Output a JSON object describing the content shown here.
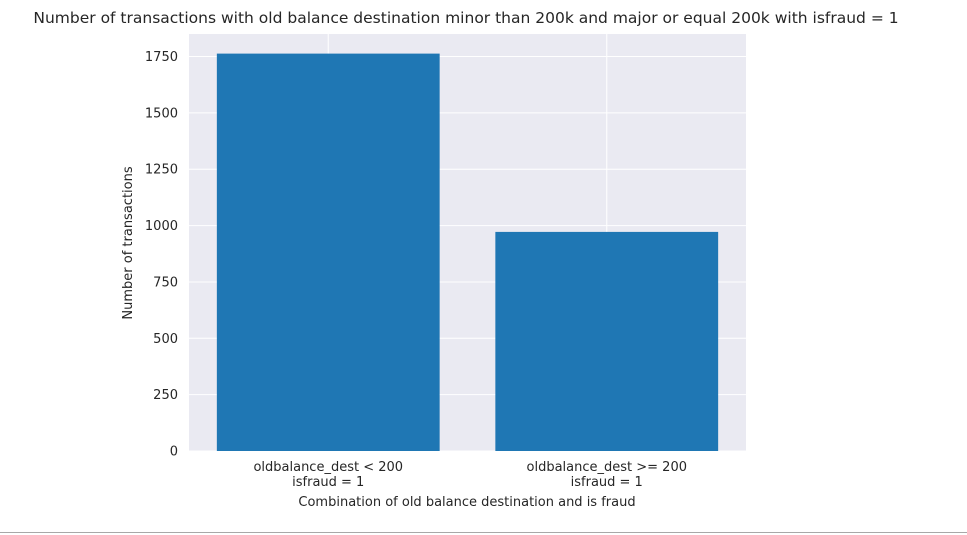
{
  "chart_data": {
    "type": "bar",
    "title": "Number of transactions with old balance destination minor than 200k and major or equal 200k with isfraud = 1",
    "xlabel": "Combination of old balance destination and is fraud",
    "ylabel": "Number of transactions",
    "categories": [
      [
        "oldbalance_dest < 200",
        "isfraud = 1"
      ],
      [
        "oldbalance_dest >= 200",
        "isfraud = 1"
      ]
    ],
    "values": [
      1763,
      972
    ],
    "ylim": [
      0,
      1850
    ],
    "yticks": [
      0,
      250,
      500,
      750,
      1000,
      1250,
      1500,
      1750
    ],
    "grid": true,
    "legend": "none",
    "colors": {
      "bar": "#1f77b4",
      "plot_background": "#eaeaf2",
      "grid": "#ffffff",
      "text": "#262626"
    }
  }
}
